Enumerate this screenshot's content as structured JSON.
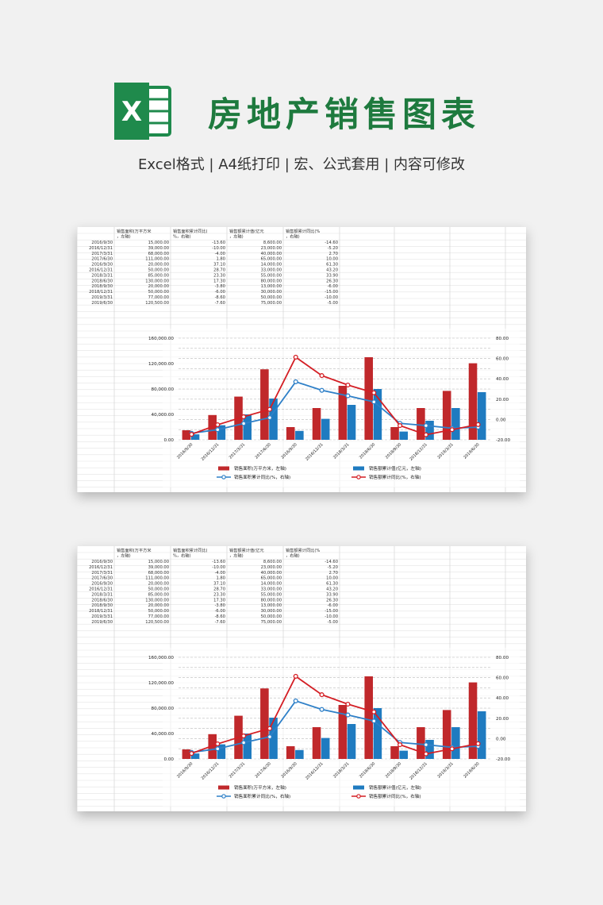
{
  "header": {
    "title": "房地产销售图表",
    "subtitle": "Excel格式 | A4纸打印 | 宏、公式套用 | 内容可修改",
    "logo_letter": "X"
  },
  "colors": {
    "area": "#c0282b",
    "amount": "#1f7bc0",
    "area_yoy": "#d41e24",
    "amount_yoy": "#2f80c8",
    "title_green": "#1e7a3e",
    "logo_green": "#1f8a4c"
  },
  "table": {
    "headers": [
      "",
      "销售面积(万平方米，左轴)",
      "销售面积累计同比(%，右轴)",
      "销售额累计值(亿元，左轴)",
      "销售额累计同比(%，右轴)"
    ],
    "rows": [
      [
        "2016/9/30",
        "15,000.00",
        "-13.60",
        "8,600.00",
        "-14.60"
      ],
      [
        "2016/12/31",
        "39,000.00",
        "-10.00",
        "23,000.00",
        "-5.20"
      ],
      [
        "2017/3/31",
        "68,000.00",
        "-4.00",
        "40,000.00",
        "2.70"
      ],
      [
        "2017/6/30",
        "111,000.00",
        "1.80",
        "65,000.00",
        "10.00"
      ],
      [
        "2016/9/30",
        "20,000.00",
        "37.10",
        "14,000.00",
        "61.30"
      ],
      [
        "2016/12/31",
        "50,000.00",
        "28.70",
        "33,000.00",
        "43.20"
      ],
      [
        "2018/3/31",
        "85,000.00",
        "23.30",
        "55,000.00",
        "33.90"
      ],
      [
        "2018/6/30",
        "130,000.00",
        "17.30",
        "80,000.00",
        "26.30"
      ],
      [
        "2018/9/30",
        "20,000.00",
        "-3.80",
        "13,000.00",
        "-6.00"
      ],
      [
        "2018/12/31",
        "50,000.00",
        "-6.00",
        "30,000.00",
        "-15.00"
      ],
      [
        "2019/3/31",
        "77,000.00",
        "-8.60",
        "50,000.00",
        "-10.00"
      ],
      [
        "2019/6/30",
        "120,500.00",
        "-7.60",
        "75,000.00",
        "-5.00"
      ]
    ]
  },
  "chart_data": {
    "type": "bar",
    "categories": [
      "2016/9/30",
      "2016/12/31",
      "2017/3/31",
      "2017/6/30",
      "2016/9/30",
      "2016/12/31",
      "2018/3/31",
      "2018/6/30",
      "2018/9/30",
      "2018/12/31",
      "2019/3/31",
      "2019/6/30"
    ],
    "left_axis": {
      "ylim": [
        0,
        160000
      ],
      "ticks": [
        "0.00",
        "40,000.00",
        "80,000.00",
        "120,000.00",
        "160,000.00"
      ]
    },
    "right_axis": {
      "ylim": [
        -20,
        80
      ],
      "ticks": [
        "-20.00",
        "0.00",
        "20.00",
        "40.00",
        "60.00",
        "80.00"
      ]
    },
    "series": [
      {
        "name": "销售面积(万平方米，左轴)",
        "kind": "bar",
        "axis": "left",
        "color": "#c0282b",
        "values": [
          15000,
          39000,
          68000,
          111000,
          20000,
          50000,
          85000,
          130000,
          20000,
          50000,
          77000,
          120500
        ]
      },
      {
        "name": "销售额累计值(亿元，左轴)",
        "kind": "bar",
        "axis": "left",
        "color": "#1f7bc0",
        "values": [
          8600,
          23000,
          40000,
          65000,
          14000,
          33000,
          55000,
          80000,
          13000,
          30000,
          50000,
          75000
        ]
      },
      {
        "name": "销售面积累计同比(%，右轴)",
        "kind": "line",
        "axis": "right",
        "color": "#2f80c8",
        "values": [
          -13.6,
          -10.0,
          -4.0,
          1.8,
          37.1,
          28.7,
          23.3,
          17.3,
          -3.8,
          -6.0,
          -8.6,
          -7.6
        ]
      },
      {
        "name": "销售额累计同比(%，右轴)",
        "kind": "line",
        "axis": "right",
        "color": "#d41e24",
        "values": [
          -14.6,
          -5.2,
          2.7,
          10.0,
          61.3,
          43.2,
          33.9,
          26.3,
          -6.0,
          -15.0,
          -10.0,
          -5.0
        ]
      }
    ],
    "legend": "bottom",
    "grid": true
  }
}
